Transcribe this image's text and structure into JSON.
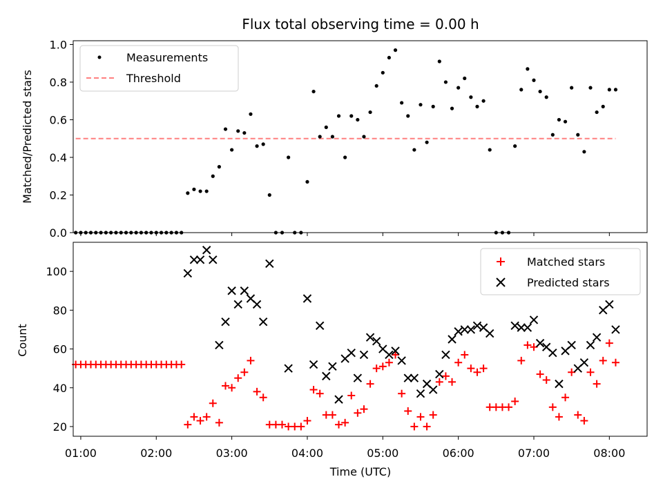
{
  "chart_data": [
    {
      "type": "scatter",
      "title": "Flux total observing time = 0.00 h",
      "xlabel": "",
      "ylabel": "Matched/Predicted stars",
      "xlim": [
        "00:54",
        "08:30"
      ],
      "ylim": [
        0,
        1.02
      ],
      "yticks": [
        "0.0",
        "0.2",
        "0.4",
        "0.6",
        "0.8",
        "1.0"
      ],
      "legend_position": "top-left",
      "series": [
        {
          "name": "Measurements",
          "color": "#000000",
          "marker": "dot",
          "points": [
            [
              "00:56",
              0
            ],
            [
              "01:00",
              0
            ],
            [
              "01:04",
              0
            ],
            [
              "01:08",
              0
            ],
            [
              "01:12",
              0
            ],
            [
              "01:16",
              0
            ],
            [
              "01:20",
              0
            ],
            [
              "01:24",
              0
            ],
            [
              "01:28",
              0
            ],
            [
              "01:32",
              0
            ],
            [
              "01:36",
              0
            ],
            [
              "01:40",
              0
            ],
            [
              "01:44",
              0
            ],
            [
              "01:48",
              0
            ],
            [
              "01:52",
              0
            ],
            [
              "01:56",
              0
            ],
            [
              "02:00",
              0
            ],
            [
              "02:04",
              0
            ],
            [
              "02:08",
              0
            ],
            [
              "02:12",
              0
            ],
            [
              "02:16",
              0
            ],
            [
              "02:20",
              0
            ],
            [
              "02:25",
              0.21
            ],
            [
              "02:30",
              0.23
            ],
            [
              "02:35",
              0.22
            ],
            [
              "02:40",
              0.22
            ],
            [
              "02:45",
              0.3
            ],
            [
              "02:50",
              0.35
            ],
            [
              "02:55",
              0.55
            ],
            [
              "03:00",
              0.44
            ],
            [
              "03:05",
              0.54
            ],
            [
              "03:10",
              0.53
            ],
            [
              "03:15",
              0.63
            ],
            [
              "03:20",
              0.46
            ],
            [
              "03:25",
              0.47
            ],
            [
              "03:30",
              0.2
            ],
            [
              "03:35",
              0
            ],
            [
              "03:40",
              0
            ],
            [
              "03:45",
              0.4
            ],
            [
              "03:50",
              0
            ],
            [
              "03:55",
              0
            ],
            [
              "04:00",
              0.27
            ],
            [
              "04:05",
              0.75
            ],
            [
              "04:10",
              0.51
            ],
            [
              "04:15",
              0.56
            ],
            [
              "04:20",
              0.51
            ],
            [
              "04:25",
              0.62
            ],
            [
              "04:30",
              0.4
            ],
            [
              "04:35",
              0.62
            ],
            [
              "04:40",
              0.6
            ],
            [
              "04:45",
              0.51
            ],
            [
              "04:50",
              0.64
            ],
            [
              "04:55",
              0.78
            ],
            [
              "05:00",
              0.85
            ],
            [
              "05:05",
              0.93
            ],
            [
              "05:10",
              0.97
            ],
            [
              "05:15",
              0.69
            ],
            [
              "05:20",
              0.62
            ],
            [
              "05:25",
              0.44
            ],
            [
              "05:30",
              0.68
            ],
            [
              "05:35",
              0.48
            ],
            [
              "05:40",
              0.67
            ],
            [
              "05:45",
              0.91
            ],
            [
              "05:50",
              0.8
            ],
            [
              "05:55",
              0.66
            ],
            [
              "06:00",
              0.77
            ],
            [
              "06:05",
              0.82
            ],
            [
              "06:10",
              0.72
            ],
            [
              "06:15",
              0.67
            ],
            [
              "06:20",
              0.7
            ],
            [
              "06:25",
              0.44
            ],
            [
              "06:30",
              0
            ],
            [
              "06:35",
              0
            ],
            [
              "06:40",
              0
            ],
            [
              "06:45",
              0.46
            ],
            [
              "06:50",
              0.76
            ],
            [
              "06:55",
              0.87
            ],
            [
              "07:00",
              0.81
            ],
            [
              "07:05",
              0.75
            ],
            [
              "07:10",
              0.72
            ],
            [
              "07:15",
              0.52
            ],
            [
              "07:20",
              0.6
            ],
            [
              "07:25",
              0.59
            ],
            [
              "07:30",
              0.77
            ],
            [
              "07:35",
              0.52
            ],
            [
              "07:40",
              0.43
            ],
            [
              "07:45",
              0.77
            ],
            [
              "07:50",
              0.64
            ],
            [
              "07:55",
              0.67
            ],
            [
              "08:00",
              0.76
            ],
            [
              "08:05",
              0.76
            ]
          ]
        },
        {
          "name": "Threshold",
          "color": "#ff7f7f",
          "style": "dashed",
          "x": [
            "00:56",
            "08:05"
          ],
          "y": [
            0.5,
            0.5
          ]
        }
      ]
    },
    {
      "type": "scatter",
      "xlabel": "Time (UTC)",
      "ylabel": "Count",
      "xlim": [
        "00:54",
        "08:30"
      ],
      "ylim": [
        15,
        115
      ],
      "xticks": [
        "01:00",
        "02:00",
        "03:00",
        "04:00",
        "05:00",
        "06:00",
        "07:00",
        "08:00"
      ],
      "yticks": [
        "20",
        "40",
        "60",
        "80",
        "100"
      ],
      "legend_position": "top-right",
      "series": [
        {
          "name": "Matched stars",
          "color": "#ff0000",
          "marker": "plus",
          "points": [
            [
              "00:56",
              52
            ],
            [
              "01:00",
              52
            ],
            [
              "01:04",
              52
            ],
            [
              "01:08",
              52
            ],
            [
              "01:12",
              52
            ],
            [
              "01:16",
              52
            ],
            [
              "01:20",
              52
            ],
            [
              "01:24",
              52
            ],
            [
              "01:28",
              52
            ],
            [
              "01:32",
              52
            ],
            [
              "01:36",
              52
            ],
            [
              "01:40",
              52
            ],
            [
              "01:44",
              52
            ],
            [
              "01:48",
              52
            ],
            [
              "01:52",
              52
            ],
            [
              "01:56",
              52
            ],
            [
              "02:00",
              52
            ],
            [
              "02:04",
              52
            ],
            [
              "02:08",
              52
            ],
            [
              "02:12",
              52
            ],
            [
              "02:16",
              52
            ],
            [
              "02:20",
              52
            ],
            [
              "02:25",
              21
            ],
            [
              "02:30",
              25
            ],
            [
              "02:35",
              23
            ],
            [
              "02:40",
              25
            ],
            [
              "02:45",
              32
            ],
            [
              "02:50",
              22
            ],
            [
              "02:55",
              41
            ],
            [
              "03:00",
              40
            ],
            [
              "03:05",
              45
            ],
            [
              "03:10",
              48
            ],
            [
              "03:15",
              54
            ],
            [
              "03:20",
              38
            ],
            [
              "03:25",
              35
            ],
            [
              "03:30",
              21
            ],
            [
              "03:35",
              21
            ],
            [
              "03:40",
              21
            ],
            [
              "03:45",
              20
            ],
            [
              "03:50",
              20
            ],
            [
              "03:55",
              20
            ],
            [
              "04:00",
              23
            ],
            [
              "04:05",
              39
            ],
            [
              "04:10",
              37
            ],
            [
              "04:15",
              26
            ],
            [
              "04:20",
              26
            ],
            [
              "04:25",
              21
            ],
            [
              "04:30",
              22
            ],
            [
              "04:35",
              36
            ],
            [
              "04:40",
              27
            ],
            [
              "04:45",
              29
            ],
            [
              "04:50",
              42
            ],
            [
              "04:55",
              50
            ],
            [
              "05:00",
              51
            ],
            [
              "05:05",
              53
            ],
            [
              "05:10",
              57
            ],
            [
              "05:15",
              37
            ],
            [
              "05:20",
              28
            ],
            [
              "05:25",
              20
            ],
            [
              "05:30",
              25
            ],
            [
              "05:35",
              20
            ],
            [
              "05:40",
              26
            ],
            [
              "05:45",
              43
            ],
            [
              "05:50",
              46
            ],
            [
              "05:55",
              43
            ],
            [
              "06:00",
              53
            ],
            [
              "06:05",
              57
            ],
            [
              "06:10",
              50
            ],
            [
              "06:15",
              48
            ],
            [
              "06:20",
              50
            ],
            [
              "06:25",
              30
            ],
            [
              "06:30",
              30
            ],
            [
              "06:35",
              30
            ],
            [
              "06:40",
              30
            ],
            [
              "06:45",
              33
            ],
            [
              "06:50",
              54
            ],
            [
              "06:55",
              62
            ],
            [
              "07:00",
              61
            ],
            [
              "07:05",
              47
            ],
            [
              "07:10",
              44
            ],
            [
              "07:15",
              30
            ],
            [
              "07:20",
              25
            ],
            [
              "07:25",
              35
            ],
            [
              "07:30",
              48
            ],
            [
              "07:35",
              26
            ],
            [
              "07:40",
              23
            ],
            [
              "07:45",
              48
            ],
            [
              "07:50",
              42
            ],
            [
              "07:55",
              54
            ],
            [
              "08:00",
              63
            ],
            [
              "08:05",
              53
            ]
          ]
        },
        {
          "name": "Predicted stars",
          "color": "#000000",
          "marker": "x",
          "points": [
            [
              "02:25",
              99
            ],
            [
              "02:30",
              106
            ],
            [
              "02:35",
              106
            ],
            [
              "02:40",
              111
            ],
            [
              "02:45",
              106
            ],
            [
              "02:50",
              62
            ],
            [
              "02:55",
              74
            ],
            [
              "03:00",
              90
            ],
            [
              "03:05",
              83
            ],
            [
              "03:10",
              90
            ],
            [
              "03:15",
              86
            ],
            [
              "03:20",
              83
            ],
            [
              "03:25",
              74
            ],
            [
              "03:30",
              104
            ],
            [
              "03:45",
              50
            ],
            [
              "04:00",
              86
            ],
            [
              "04:05",
              52
            ],
            [
              "04:10",
              72
            ],
            [
              "04:15",
              46
            ],
            [
              "04:20",
              51
            ],
            [
              "04:25",
              34
            ],
            [
              "04:30",
              55
            ],
            [
              "04:35",
              58
            ],
            [
              "04:40",
              45
            ],
            [
              "04:45",
              57
            ],
            [
              "04:50",
              66
            ],
            [
              "04:55",
              64
            ],
            [
              "05:00",
              60
            ],
            [
              "05:05",
              57
            ],
            [
              "05:10",
              59
            ],
            [
              "05:15",
              54
            ],
            [
              "05:20",
              45
            ],
            [
              "05:25",
              45
            ],
            [
              "05:30",
              37
            ],
            [
              "05:35",
              42
            ],
            [
              "05:40",
              39
            ],
            [
              "05:45",
              47
            ],
            [
              "05:50",
              57
            ],
            [
              "05:55",
              65
            ],
            [
              "06:00",
              69
            ],
            [
              "06:05",
              70
            ],
            [
              "06:10",
              70
            ],
            [
              "06:15",
              72
            ],
            [
              "06:20",
              71
            ],
            [
              "06:25",
              68
            ],
            [
              "06:45",
              72
            ],
            [
              "06:50",
              71
            ],
            [
              "06:55",
              71
            ],
            [
              "07:00",
              75
            ],
            [
              "07:05",
              63
            ],
            [
              "07:10",
              61
            ],
            [
              "07:15",
              58
            ],
            [
              "07:20",
              42
            ],
            [
              "07:25",
              59
            ],
            [
              "07:30",
              62
            ],
            [
              "07:35",
              50
            ],
            [
              "07:40",
              53
            ],
            [
              "07:45",
              62
            ],
            [
              "07:50",
              66
            ],
            [
              "07:55",
              80
            ],
            [
              "08:00",
              83
            ],
            [
              "08:05",
              70
            ]
          ]
        }
      ]
    }
  ]
}
